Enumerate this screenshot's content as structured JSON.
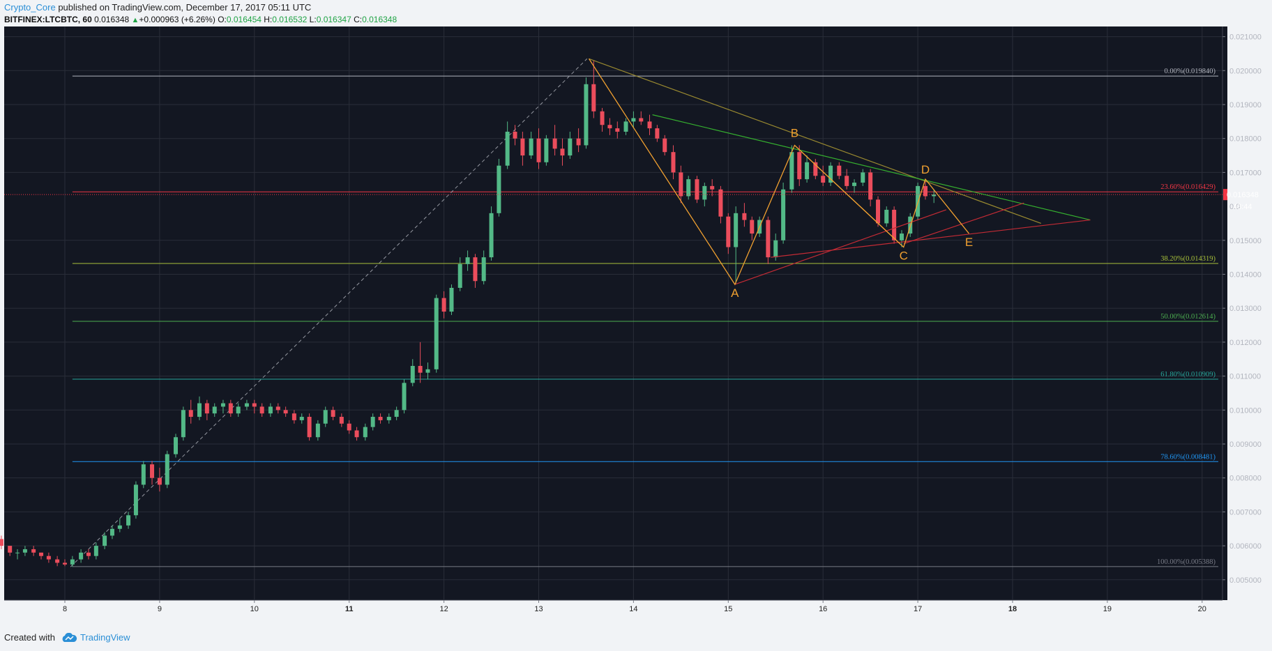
{
  "header": {
    "author": "Crypto_Core",
    "published_text": " published on TradingView.com, December 17, 2017 05:11 UTC",
    "symbol": "BITFINEX:LTCBTC, 60",
    "last": "0.016348",
    "change": "+0.000963 (+6.26%)",
    "o_label": "O:",
    "o_val": "0.016454",
    "h_label": "H:",
    "h_val": "0.016532",
    "l_label": "L:",
    "l_val": "0.016347",
    "c_label": "C:",
    "c_val": "0.016348"
  },
  "footer": {
    "created_with": "Created with",
    "brand": "TradingView"
  },
  "colors": {
    "background": "#131722",
    "grid": "#2a2e39",
    "up": "#53b987",
    "down": "#eb4d5c",
    "pattern_orange": "#f0a030",
    "trend_olive": "#9a8a30",
    "trend_green": "#35b02f",
    "trend_red": "#c42b35"
  },
  "chart_data": {
    "type": "candlestick",
    "x_axis": {
      "tick_labels": [
        "8",
        "9",
        "10",
        "11",
        "12",
        "13",
        "14",
        "15",
        "16",
        "17",
        "18",
        "19",
        "20"
      ],
      "bold_ticks": [
        "11",
        "18"
      ]
    },
    "y_axis": {
      "range": [
        0.0044,
        0.0213
      ],
      "tick_labels": [
        "0.021000",
        "0.020000",
        "0.019000",
        "0.018000",
        "0.017000",
        "0.015000",
        "0.014000",
        "0.013000",
        "0.012000",
        "0.011000",
        "0.010000",
        "0.009000",
        "0.008000",
        "0.007000",
        "0.006000",
        "0.005000"
      ],
      "partial_tick_label": "0.0"
    },
    "last_price": {
      "value": 0.016348,
      "label": "0.016348",
      "countdown": "48:44"
    },
    "fibonacci": [
      {
        "label": "0.00%(0.019840)",
        "value": 0.01984,
        "color": "#b2b5be"
      },
      {
        "label": "23.60%(0.016429)",
        "value": 0.016429,
        "color": "#f23645"
      },
      {
        "label": "38.20%(0.014319)",
        "value": 0.014319,
        "color": "#a8c13a"
      },
      {
        "label": "50.00%(0.012614)",
        "value": 0.012614,
        "color": "#4caf50"
      },
      {
        "label": "61.80%(0.010909)",
        "value": 0.010909,
        "color": "#26a69a"
      },
      {
        "label": "78.60%(0.008481)",
        "value": 0.008481,
        "color": "#2196f3"
      },
      {
        "label": "100.00%(0.005388)",
        "value": 0.005388,
        "color": "#787b86"
      }
    ],
    "pattern_points": [
      {
        "label": "A",
        "day": 15.07,
        "value": 0.0137,
        "label_dy": 18
      },
      {
        "label": "B",
        "day": 15.7,
        "value": 0.0178,
        "label_dy": -12
      },
      {
        "label": "C",
        "day": 16.85,
        "value": 0.0148,
        "label_dy": 18
      },
      {
        "label": "D",
        "day": 17.08,
        "value": 0.0168,
        "label_dy": -8
      },
      {
        "label": "E",
        "day": 17.54,
        "value": 0.0152,
        "label_dy": 18
      }
    ],
    "dashed_line": [
      [
        8.06,
        0.00538
      ],
      [
        13.51,
        0.02035
      ]
    ],
    "xabcd": [
      [
        13.53,
        0.02035
      ],
      [
        15.07,
        0.0137
      ],
      [
        15.7,
        0.0178
      ],
      [
        16.85,
        0.0148
      ],
      [
        17.08,
        0.0168
      ],
      [
        17.54,
        0.0152
      ]
    ],
    "trendlines": [
      {
        "color": "olive",
        "points": [
          [
            13.53,
            0.02035
          ],
          [
            18.3,
            0.0155
          ]
        ]
      },
      {
        "color": "green",
        "points": [
          [
            14.2,
            0.0187
          ],
          [
            18.82,
            0.0156
          ]
        ]
      },
      {
        "color": "red",
        "points": [
          [
            15.07,
            0.0137
          ],
          [
            17.3,
            0.0159
          ]
        ]
      },
      {
        "color": "red",
        "points": [
          [
            15.45,
            0.0145
          ],
          [
            18.82,
            0.0156
          ]
        ]
      },
      {
        "color": "red",
        "points": [
          [
            16.85,
            0.0149
          ],
          [
            18.12,
            0.0161
          ]
        ]
      },
      {
        "color": "orange",
        "points": [
          [
            15.7,
            0.0178
          ],
          [
            16.85,
            0.0148
          ]
        ]
      }
    ],
    "candles": [
      [
        7.08,
        0.0065,
        0.0066,
        0.0063,
        0.0064
      ],
      [
        7.17,
        0.0064,
        0.0066,
        0.0063,
        0.0065
      ],
      [
        7.25,
        0.0065,
        0.0066,
        0.0061,
        0.0062
      ],
      [
        7.33,
        0.0062,
        0.0063,
        0.0059,
        0.006
      ],
      [
        7.42,
        0.006,
        0.006,
        0.0057,
        0.0058
      ],
      [
        7.5,
        0.0058,
        0.0059,
        0.0056,
        0.0058
      ],
      [
        7.58,
        0.0058,
        0.006,
        0.0057,
        0.0059
      ],
      [
        7.67,
        0.0059,
        0.006,
        0.0057,
        0.0058
      ],
      [
        7.75,
        0.0058,
        0.0058,
        0.0056,
        0.0057
      ],
      [
        7.83,
        0.0057,
        0.0058,
        0.0055,
        0.0056
      ],
      [
        7.92,
        0.0056,
        0.0057,
        0.0054,
        0.0055
      ],
      [
        8.0,
        0.0055,
        0.0056,
        0.0054,
        0.00545
      ],
      [
        8.08,
        0.00545,
        0.0057,
        0.00538,
        0.0056
      ],
      [
        8.17,
        0.0056,
        0.0059,
        0.0055,
        0.0058
      ],
      [
        8.25,
        0.0058,
        0.0059,
        0.0056,
        0.0057
      ],
      [
        8.33,
        0.0057,
        0.0061,
        0.0056,
        0.006
      ],
      [
        8.42,
        0.006,
        0.0064,
        0.0059,
        0.0063
      ],
      [
        8.5,
        0.0063,
        0.0066,
        0.0062,
        0.0065
      ],
      [
        8.58,
        0.0065,
        0.0068,
        0.0064,
        0.0066
      ],
      [
        8.67,
        0.0066,
        0.007,
        0.0065,
        0.0069
      ],
      [
        8.75,
        0.0069,
        0.0079,
        0.0068,
        0.0078
      ],
      [
        8.83,
        0.0078,
        0.0085,
        0.0077,
        0.0084
      ],
      [
        8.92,
        0.0084,
        0.0085,
        0.0078,
        0.008
      ],
      [
        9.0,
        0.008,
        0.0083,
        0.0076,
        0.0078
      ],
      [
        9.08,
        0.0078,
        0.0088,
        0.0077,
        0.0087
      ],
      [
        9.17,
        0.0087,
        0.0093,
        0.0086,
        0.0092
      ],
      [
        9.25,
        0.0092,
        0.0101,
        0.0091,
        0.01
      ],
      [
        9.33,
        0.01,
        0.0103,
        0.0096,
        0.0098
      ],
      [
        9.42,
        0.0098,
        0.0104,
        0.0097,
        0.0102
      ],
      [
        9.5,
        0.0102,
        0.0103,
        0.0097,
        0.0099
      ],
      [
        9.58,
        0.0099,
        0.0102,
        0.0098,
        0.0101
      ],
      [
        9.67,
        0.0101,
        0.0103,
        0.0099,
        0.0102
      ],
      [
        9.75,
        0.0102,
        0.0103,
        0.0098,
        0.0099
      ],
      [
        9.83,
        0.0099,
        0.0102,
        0.0098,
        0.0101
      ],
      [
        9.92,
        0.0101,
        0.0103,
        0.01,
        0.0102
      ],
      [
        10.0,
        0.0102,
        0.0103,
        0.0099,
        0.0101
      ],
      [
        10.08,
        0.0101,
        0.0102,
        0.0098,
        0.0099
      ],
      [
        10.17,
        0.0099,
        0.0102,
        0.0098,
        0.0101
      ],
      [
        10.25,
        0.0101,
        0.0102,
        0.0099,
        0.01
      ],
      [
        10.33,
        0.01,
        0.0101,
        0.0098,
        0.0099
      ],
      [
        10.42,
        0.0099,
        0.01,
        0.0096,
        0.0097
      ],
      [
        10.5,
        0.0097,
        0.0099,
        0.0096,
        0.0098
      ],
      [
        10.58,
        0.0098,
        0.0099,
        0.0091,
        0.0092
      ],
      [
        10.67,
        0.0092,
        0.0097,
        0.0091,
        0.0096
      ],
      [
        10.75,
        0.0096,
        0.0101,
        0.0095,
        0.01
      ],
      [
        10.83,
        0.01,
        0.0101,
        0.0097,
        0.0098
      ],
      [
        10.92,
        0.0098,
        0.0099,
        0.0095,
        0.0096
      ],
      [
        11.0,
        0.0096,
        0.0097,
        0.0093,
        0.0094
      ],
      [
        11.08,
        0.0094,
        0.0095,
        0.0091,
        0.0092
      ],
      [
        11.17,
        0.0092,
        0.0096,
        0.0091,
        0.0095
      ],
      [
        11.25,
        0.0095,
        0.0099,
        0.0094,
        0.0098
      ],
      [
        11.33,
        0.0098,
        0.0099,
        0.0096,
        0.0097
      ],
      [
        11.42,
        0.0097,
        0.0099,
        0.0096,
        0.0098
      ],
      [
        11.5,
        0.0098,
        0.0101,
        0.0097,
        0.01
      ],
      [
        11.58,
        0.01,
        0.0109,
        0.0099,
        0.0108
      ],
      [
        11.67,
        0.0108,
        0.0115,
        0.0107,
        0.0113
      ],
      [
        11.75,
        0.0113,
        0.012,
        0.0108,
        0.0111
      ],
      [
        11.83,
        0.0111,
        0.0114,
        0.0109,
        0.0112
      ],
      [
        11.92,
        0.0112,
        0.0134,
        0.0111,
        0.0133
      ],
      [
        12.0,
        0.0133,
        0.0135,
        0.0127,
        0.0129
      ],
      [
        12.08,
        0.0129,
        0.0137,
        0.0128,
        0.0136
      ],
      [
        12.17,
        0.0136,
        0.0145,
        0.0135,
        0.0143
      ],
      [
        12.25,
        0.0143,
        0.0147,
        0.0141,
        0.0145
      ],
      [
        12.33,
        0.0145,
        0.0146,
        0.0136,
        0.0138
      ],
      [
        12.42,
        0.0138,
        0.0147,
        0.0137,
        0.0145
      ],
      [
        12.5,
        0.0145,
        0.016,
        0.0144,
        0.0158
      ],
      [
        12.58,
        0.0158,
        0.0174,
        0.0157,
        0.0172
      ],
      [
        12.67,
        0.0172,
        0.0185,
        0.0171,
        0.0182
      ],
      [
        12.75,
        0.0182,
        0.0184,
        0.0178,
        0.018
      ],
      [
        12.83,
        0.018,
        0.0182,
        0.0172,
        0.0175
      ],
      [
        12.92,
        0.0175,
        0.0182,
        0.0174,
        0.018
      ],
      [
        13.0,
        0.018,
        0.0183,
        0.0171,
        0.0173
      ],
      [
        13.08,
        0.0173,
        0.0181,
        0.0172,
        0.018
      ],
      [
        13.17,
        0.018,
        0.0184,
        0.0175,
        0.0177
      ],
      [
        13.25,
        0.0177,
        0.018,
        0.0172,
        0.0175
      ],
      [
        13.33,
        0.0175,
        0.0182,
        0.0174,
        0.018
      ],
      [
        13.42,
        0.018,
        0.0183,
        0.0176,
        0.0178
      ],
      [
        13.5,
        0.0178,
        0.0198,
        0.0177,
        0.0196
      ],
      [
        13.58,
        0.0196,
        0.0203,
        0.0186,
        0.0188
      ],
      [
        13.67,
        0.0188,
        0.0189,
        0.0182,
        0.0184
      ],
      [
        13.75,
        0.0184,
        0.0186,
        0.0181,
        0.0183
      ],
      [
        13.83,
        0.0183,
        0.0185,
        0.018,
        0.0182
      ],
      [
        13.92,
        0.0182,
        0.0186,
        0.0181,
        0.0185
      ],
      [
        14.0,
        0.0185,
        0.0188,
        0.0183,
        0.0186
      ],
      [
        14.08,
        0.0186,
        0.0188,
        0.0184,
        0.0185
      ],
      [
        14.17,
        0.0185,
        0.0187,
        0.0181,
        0.0183
      ],
      [
        14.25,
        0.0183,
        0.0184,
        0.0179,
        0.018
      ],
      [
        14.33,
        0.018,
        0.0181,
        0.0175,
        0.0176
      ],
      [
        14.42,
        0.0176,
        0.0178,
        0.0168,
        0.017
      ],
      [
        14.5,
        0.017,
        0.0172,
        0.0161,
        0.0163
      ],
      [
        14.58,
        0.0163,
        0.0169,
        0.0162,
        0.0168
      ],
      [
        14.67,
        0.0168,
        0.0169,
        0.0161,
        0.0162
      ],
      [
        14.75,
        0.0162,
        0.0167,
        0.016,
        0.0166
      ],
      [
        14.83,
        0.0166,
        0.0168,
        0.0163,
        0.0165
      ],
      [
        14.92,
        0.0165,
        0.0166,
        0.0155,
        0.0157
      ],
      [
        15.0,
        0.0157,
        0.0158,
        0.0146,
        0.0148
      ],
      [
        15.08,
        0.0148,
        0.016,
        0.0137,
        0.0158
      ],
      [
        15.17,
        0.0158,
        0.0161,
        0.0154,
        0.0156
      ],
      [
        15.25,
        0.0156,
        0.0157,
        0.015,
        0.0152
      ],
      [
        15.33,
        0.0152,
        0.0157,
        0.0151,
        0.0156
      ],
      [
        15.42,
        0.0156,
        0.0157,
        0.0143,
        0.0145
      ],
      [
        15.5,
        0.0145,
        0.0152,
        0.0144,
        0.015
      ],
      [
        15.58,
        0.015,
        0.0167,
        0.0149,
        0.0165
      ],
      [
        15.67,
        0.0165,
        0.0178,
        0.0164,
        0.0176
      ],
      [
        15.75,
        0.0176,
        0.0178,
        0.0166,
        0.0168
      ],
      [
        15.83,
        0.0168,
        0.0175,
        0.0167,
        0.0173
      ],
      [
        15.92,
        0.0173,
        0.0174,
        0.0168,
        0.0169
      ],
      [
        16.0,
        0.0169,
        0.0172,
        0.0166,
        0.0167
      ],
      [
        16.08,
        0.0167,
        0.0173,
        0.0166,
        0.0172
      ],
      [
        16.17,
        0.0172,
        0.0173,
        0.0168,
        0.0169
      ],
      [
        16.25,
        0.0169,
        0.0171,
        0.0165,
        0.0166
      ],
      [
        16.33,
        0.0166,
        0.0168,
        0.0164,
        0.0167
      ],
      [
        16.42,
        0.0167,
        0.0171,
        0.0166,
        0.017
      ],
      [
        16.5,
        0.017,
        0.0171,
        0.016,
        0.0162
      ],
      [
        16.58,
        0.0162,
        0.0163,
        0.0154,
        0.0155
      ],
      [
        16.67,
        0.0155,
        0.016,
        0.0154,
        0.0159
      ],
      [
        16.75,
        0.0159,
        0.016,
        0.0149,
        0.015
      ],
      [
        16.83,
        0.015,
        0.0153,
        0.0148,
        0.0152
      ],
      [
        16.92,
        0.0152,
        0.0158,
        0.0151,
        0.0157
      ],
      [
        17.0,
        0.0157,
        0.0167,
        0.0156,
        0.0166
      ],
      [
        17.08,
        0.0166,
        0.0168,
        0.0162,
        0.0163
      ],
      [
        17.17,
        0.0163,
        0.0165,
        0.0161,
        0.01635
      ]
    ]
  }
}
